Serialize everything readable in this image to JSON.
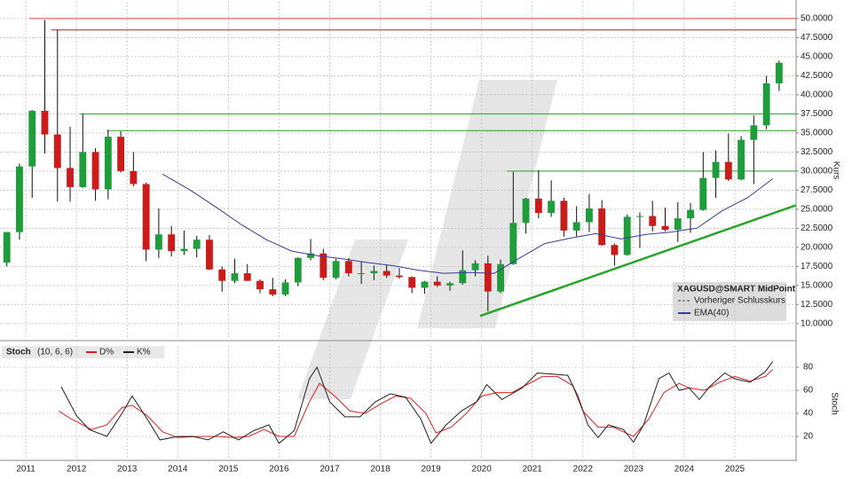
{
  "chart_data": [
    {
      "type": "candlestick",
      "title": "XAGUSD@SMART MidPoint",
      "y_label": "Kurs",
      "x": [
        2010.625,
        2010.875,
        2011.125,
        2011.375,
        2011.625,
        2011.875,
        2012.125,
        2012.375,
        2012.625,
        2012.875,
        2013.125,
        2013.375,
        2013.625,
        2013.875,
        2014.125,
        2014.375,
        2014.625,
        2014.875,
        2015.125,
        2015.375,
        2015.625,
        2015.875,
        2016.125,
        2016.375,
        2016.625,
        2016.875,
        2017.125,
        2017.375,
        2017.625,
        2017.875,
        2018.125,
        2018.375,
        2018.625,
        2018.875,
        2019.125,
        2019.375,
        2019.625,
        2019.875,
        2020.125,
        2020.375,
        2020.625,
        2020.875,
        2021.125,
        2021.375,
        2021.625,
        2021.875,
        2022.125,
        2022.375,
        2022.625,
        2022.875,
        2023.125,
        2023.375,
        2023.625,
        2023.875,
        2024.125,
        2024.375,
        2024.625,
        2024.875,
        2025.125,
        2025.375,
        2025.625,
        2025.875
      ],
      "open": [
        18,
        22,
        30.6,
        37.9,
        34.8,
        30.4,
        27.9,
        32.5,
        27.6,
        34.5,
        30,
        28.3,
        19.7,
        21.7,
        19.5,
        19.8,
        21,
        17.1,
        15.6,
        16.6,
        15.6,
        14.5,
        13.8,
        15.4,
        18.6,
        19.2,
        16,
        18.2,
        16.6,
        16.6,
        16.9,
        16.3,
        16.1,
        14.7,
        15.5,
        15,
        15.3,
        17,
        17.9,
        14.2,
        17.8,
        23.2,
        26.4,
        24.5,
        26.1,
        22.2,
        23.3,
        25.1,
        20.3,
        19,
        24,
        24.1,
        22.8,
        22.3,
        23.8,
        24.9,
        29.1,
        31.2,
        28.9,
        34.1,
        36,
        41.5
      ],
      "high": [
        22,
        31,
        38,
        49.8,
        48.5,
        35.8,
        37.5,
        33,
        35.4,
        35.2,
        32.5,
        28.5,
        25.1,
        22.8,
        22.2,
        21.5,
        21.6,
        17.5,
        18.5,
        17.8,
        15.8,
        16,
        15.8,
        18.7,
        21.1,
        19.8,
        18.5,
        18.6,
        18.1,
        17.6,
        17.7,
        17.3,
        16.2,
        15.6,
        16.2,
        15.5,
        19.6,
        18.3,
        18.9,
        18.4,
        29.9,
        26.5,
        30.1,
        28.8,
        26.5,
        25.4,
        27,
        26.2,
        20.5,
        24.3,
        24.6,
        26.1,
        25.2,
        25.9,
        25.8,
        32.5,
        32.7,
        34.9,
        34.6,
        37.3,
        42.5,
        44.5
      ],
      "low": [
        17.5,
        21,
        26.5,
        32.3,
        26,
        26,
        27.8,
        26.1,
        26.3,
        29.8,
        28,
        18.2,
        18.6,
        18.8,
        19,
        18.7,
        17,
        14.2,
        15.3,
        15.6,
        14,
        13.6,
        13.6,
        14.9,
        18.3,
        15.7,
        15.8,
        16.2,
        15.2,
        15.7,
        16,
        15.9,
        14,
        13.9,
        14.8,
        14.3,
        15.1,
        16.2,
        11.6,
        14,
        17.7,
        21.8,
        23.8,
        24,
        21.4,
        21.4,
        22,
        20.2,
        17.6,
        18.9,
        19.9,
        22.1,
        22.1,
        20.7,
        21.9,
        24.8,
        26.5,
        28.7,
        28.8,
        28.3,
        35.5,
        40.5
      ],
      "close": [
        22,
        30.6,
        37.9,
        34.8,
        30.4,
        27.9,
        32.5,
        27.6,
        34.5,
        30,
        28.3,
        19.7,
        21.7,
        19.5,
        19.8,
        21,
        17.1,
        15.6,
        16.6,
        15.6,
        14.5,
        13.8,
        15.4,
        18.6,
        19.2,
        16,
        18.2,
        16.6,
        16.6,
        16.9,
        16.3,
        16.1,
        14.7,
        15.5,
        15,
        15.3,
        17,
        17.9,
        14.2,
        17.8,
        23.2,
        26.4,
        24.5,
        26.1,
        22.2,
        23.3,
        25.1,
        20.3,
        19,
        24,
        24.1,
        22.8,
        22.3,
        23.8,
        24.9,
        29.1,
        31.2,
        28.9,
        34.1,
        36,
        41.5,
        44.2
      ],
      "up_color": "#1f9d3a",
      "down_color": "#cc1b1b",
      "overlays": [
        {
          "name": "EMA(40)",
          "color": "#3a3a9a",
          "x": [
            2013.7,
            2014.25,
            2014.75,
            2015.25,
            2015.75,
            2016.25,
            2016.75,
            2017.25,
            2017.75,
            2018.25,
            2018.75,
            2019.25,
            2019.75,
            2020.25,
            2020.75,
            2021.25,
            2021.75,
            2022.25,
            2022.75,
            2023.25,
            2023.75,
            2024.25,
            2024.75,
            2025.25,
            2025.75
          ],
          "values": [
            29.6,
            27.5,
            25.3,
            23,
            21,
            19.5,
            18.9,
            18.5,
            18,
            17.6,
            17,
            16.6,
            16.7,
            16.6,
            18.6,
            20.5,
            21.2,
            21.8,
            21.1,
            21.7,
            22,
            22.5,
            24.8,
            26.5,
            29
          ]
        }
      ],
      "legend": {
        "title": "XAGUSD@SMART MidPoint",
        "entries": [
          "Vorheriger Schlusskurs"
        ]
      },
      "hlines": [
        {
          "value": 50,
          "from": 2011.07,
          "color": "#e04040"
        },
        {
          "value": 48.5,
          "from": 2011.5,
          "color": "#a02828"
        },
        {
          "value": 37.5,
          "from": 2012.07,
          "color": "#2e9a2e"
        },
        {
          "value": 35.3,
          "from": 2012.6,
          "color": "#2e9a2e"
        },
        {
          "value": 30,
          "from": 2020.5,
          "color": "#2e9a2e"
        }
      ],
      "trendline": {
        "x": [
          2019.97,
          2026.2
        ],
        "values": [
          11,
          25.5
        ],
        "color": "#2aa52a"
      },
      "xlim": [
        2010.49,
        2026.21
      ],
      "ylim": [
        8,
        52.2
      ],
      "yticks": [
        {
          "value": 10,
          "label": "10.0000"
        },
        {
          "value": 12.5,
          "label": "12.5000"
        },
        {
          "value": 15,
          "label": "15.0000"
        },
        {
          "value": 17.5,
          "label": "17.5000"
        },
        {
          "value": 20,
          "label": "20.0000"
        },
        {
          "value": 22.5,
          "label": "22.5000"
        },
        {
          "value": 25,
          "label": "25.0000"
        },
        {
          "value": 27.5,
          "label": "27.5000"
        },
        {
          "value": 30,
          "label": "30.0000"
        },
        {
          "value": 32.5,
          "label": "32.5000"
        },
        {
          "value": 35,
          "label": "35.0000"
        },
        {
          "value": 37.5,
          "label": "37.5000"
        },
        {
          "value": 40,
          "label": "40.0000"
        },
        {
          "value": 42.5,
          "label": "42.5000"
        },
        {
          "value": 45,
          "label": "45.0000"
        },
        {
          "value": 47.5,
          "label": "47.5000"
        },
        {
          "value": 50,
          "label": "50.0000"
        }
      ],
      "grid": true
    },
    {
      "type": "line",
      "title": "Stoch",
      "subtitle": "(10, 6, 6)",
      "y_label": "Stoch",
      "series": [
        {
          "name": "D%",
          "color": "#e02020",
          "x": [
            2011.65,
            2011.9,
            2012.3,
            2012.6,
            2012.9,
            2013.1,
            2013.4,
            2013.7,
            2014.0,
            2014.4,
            2014.8,
            2015.1,
            2015.4,
            2015.7,
            2016.0,
            2016.3,
            2016.6,
            2016.8,
            2017.1,
            2017.4,
            2017.7,
            2018.0,
            2018.3,
            2018.6,
            2018.9,
            2019.1,
            2019.4,
            2019.7,
            2020.0,
            2020.3,
            2020.6,
            2020.9,
            2021.2,
            2021.5,
            2021.8,
            2022.0,
            2022.3,
            2022.6,
            2022.8,
            2023.0,
            2023.3,
            2023.6,
            2023.9,
            2024.1,
            2024.4,
            2024.7,
            2025.0,
            2025.3,
            2025.6,
            2025.75
          ],
          "values": [
            42,
            35,
            26,
            30,
            45,
            47,
            38,
            24,
            19,
            20,
            20,
            19,
            20,
            26,
            20,
            20,
            50,
            66,
            55,
            42,
            40,
            48,
            55,
            53,
            40,
            23,
            28,
            40,
            55,
            58,
            58,
            65,
            72,
            72,
            64,
            42,
            28,
            28,
            24,
            20,
            35,
            58,
            66,
            62,
            60,
            67,
            72,
            68,
            72,
            78
          ]
        },
        {
          "name": "K%",
          "color": "#202020",
          "x": [
            2011.7,
            2012.0,
            2012.25,
            2012.6,
            2012.9,
            2013.1,
            2013.4,
            2013.65,
            2014.0,
            2014.3,
            2014.6,
            2014.9,
            2015.2,
            2015.5,
            2015.8,
            2016.0,
            2016.3,
            2016.6,
            2016.75,
            2017.0,
            2017.3,
            2017.6,
            2017.9,
            2018.2,
            2018.5,
            2018.8,
            2019.0,
            2019.3,
            2019.6,
            2019.9,
            2020.1,
            2020.4,
            2020.8,
            2021.1,
            2021.4,
            2021.7,
            2021.9,
            2022.1,
            2022.3,
            2022.5,
            2022.8,
            2023.0,
            2023.2,
            2023.5,
            2023.7,
            2023.9,
            2024.1,
            2024.3,
            2024.5,
            2024.8,
            2025.0,
            2025.3,
            2025.6,
            2025.75
          ],
          "values": [
            63,
            38,
            26,
            20,
            40,
            55,
            35,
            17,
            20,
            20,
            17,
            24,
            17,
            25,
            30,
            14,
            25,
            70,
            80,
            50,
            37,
            37,
            50,
            57,
            54,
            35,
            14,
            30,
            42,
            50,
            65,
            52,
            62,
            75,
            74,
            73,
            55,
            30,
            19,
            30,
            26,
            15,
            30,
            70,
            75,
            60,
            62,
            52,
            63,
            75,
            70,
            67,
            76,
            85
          ]
        }
      ],
      "xlim": [
        2010.49,
        2026.21
      ],
      "ylim": [
        0.8,
        98.5
      ],
      "xticks": [
        2011,
        2012,
        2013,
        2014,
        2015,
        2016,
        2017,
        2018,
        2019,
        2020,
        2021,
        2022,
        2023,
        2024,
        2025
      ],
      "yticks": [
        20,
        40,
        60,
        80
      ],
      "grid": true
    }
  ]
}
